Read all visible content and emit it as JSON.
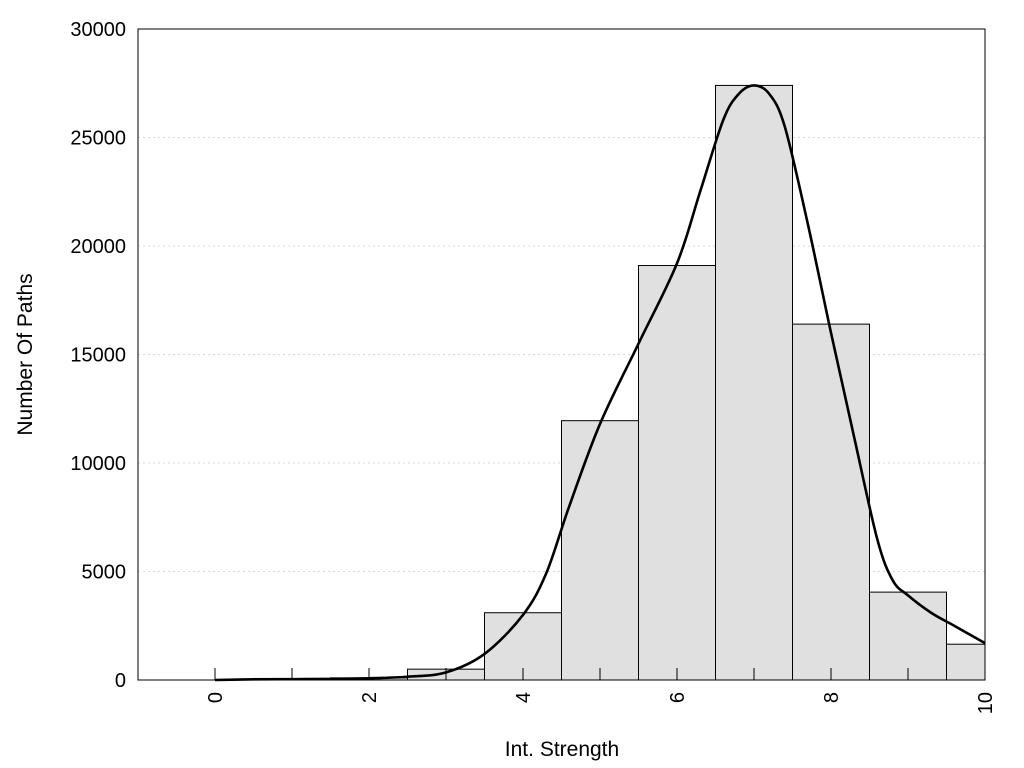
{
  "chart_data": {
    "type": "bar",
    "title": "",
    "xlabel": "Int. Strength",
    "ylabel": "Number Of Paths",
    "xlim": [
      -1,
      10
    ],
    "ylim": [
      0,
      30000
    ],
    "x_ticks": [
      0,
      2,
      4,
      6,
      8,
      10
    ],
    "x_tick_labels": [
      "0",
      "2",
      "4",
      "6",
      "8",
      "10"
    ],
    "y_ticks": [
      0,
      5000,
      10000,
      15000,
      20000,
      25000,
      30000
    ],
    "y_tick_labels": [
      "0",
      "5000",
      "10000",
      "15000",
      "20000",
      "25000",
      "30000"
    ],
    "grid": "horizontal dotted",
    "bins": [
      {
        "center": 0,
        "value": 0
      },
      {
        "center": 1,
        "value": 30
      },
      {
        "center": 2,
        "value": 100
      },
      {
        "center": 3,
        "value": 500
      },
      {
        "center": 4,
        "value": 3100
      },
      {
        "center": 5,
        "value": 11950
      },
      {
        "center": 6,
        "value": 19100
      },
      {
        "center": 7,
        "value": 27400
      },
      {
        "center": 8,
        "value": 16400
      },
      {
        "center": 9,
        "value": 4050
      },
      {
        "center": 10,
        "value": 1650
      }
    ],
    "density_curve": {
      "x": [
        0,
        0.5,
        1,
        1.5,
        2,
        2.5,
        3,
        3.5,
        4,
        4.3,
        4.6,
        5,
        5.5,
        6,
        6.3,
        6.6,
        6.8,
        7,
        7.2,
        7.4,
        7.7,
        8,
        8.3,
        8.6,
        8.8,
        9,
        9.3,
        9.6,
        10
      ],
      "y": [
        0,
        30,
        40,
        50,
        80,
        150,
        350,
        1200,
        3000,
        4900,
        8000,
        11800,
        15500,
        19200,
        22500,
        25800,
        27000,
        27400,
        27000,
        25500,
        21000,
        16000,
        11200,
        6500,
        4600,
        3900,
        3100,
        2500,
        1700
      ]
    },
    "colors": {
      "bar_fill": "#e0e0e0",
      "bar_stroke": "#000000",
      "curve": "#000000",
      "grid": "#d8d8d8"
    }
  }
}
